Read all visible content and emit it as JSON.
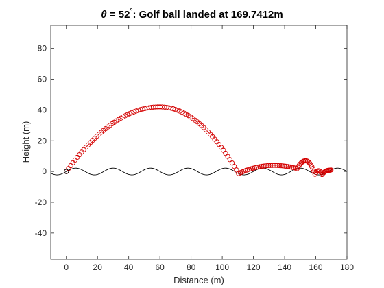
{
  "chart_data": {
    "type": "scatter",
    "title": {
      "symbol": "θ",
      "prefix": " = 52",
      "degree": "°",
      "suffix": ": Golf ball landed at 169.7412m"
    },
    "xlabel": "Distance (m)",
    "ylabel": "Height (m)",
    "xlim": [
      -10,
      180
    ],
    "ylim": [
      -57,
      95
    ],
    "xticks": [
      0,
      20,
      40,
      60,
      80,
      100,
      120,
      140,
      160,
      180
    ],
    "yticks": [
      -40,
      -20,
      0,
      20,
      40,
      60,
      80
    ],
    "grid": false,
    "colors": {
      "trajectory": "#d40000",
      "terrain": "#000000",
      "axes": "#262626"
    },
    "terrain": {
      "amplitude": 2.2,
      "wavelength": 24,
      "description_x_range": [
        -10,
        180
      ]
    },
    "series": [
      {
        "marker": "circle",
        "segments": [
          {
            "x0": 0,
            "x1": 110.5,
            "peak_x": 60,
            "peak_y": 42,
            "points": 80
          },
          {
            "x0": 110.5,
            "x1": 148,
            "peak_x": 133,
            "peak_y": 4,
            "points": 34
          },
          {
            "x0": 148,
            "x1": 159.5,
            "peak_x": 153.5,
            "peak_y": 7,
            "points": 18
          },
          {
            "x0": 159.5,
            "x1": 164,
            "peak_x": 162,
            "peak_y": 0.5,
            "points": 7
          },
          {
            "x0": 164,
            "x1": 169.7412,
            "peak_x": 168.5,
            "peak_y": 0.8,
            "points": 12
          }
        ]
      }
    ]
  }
}
